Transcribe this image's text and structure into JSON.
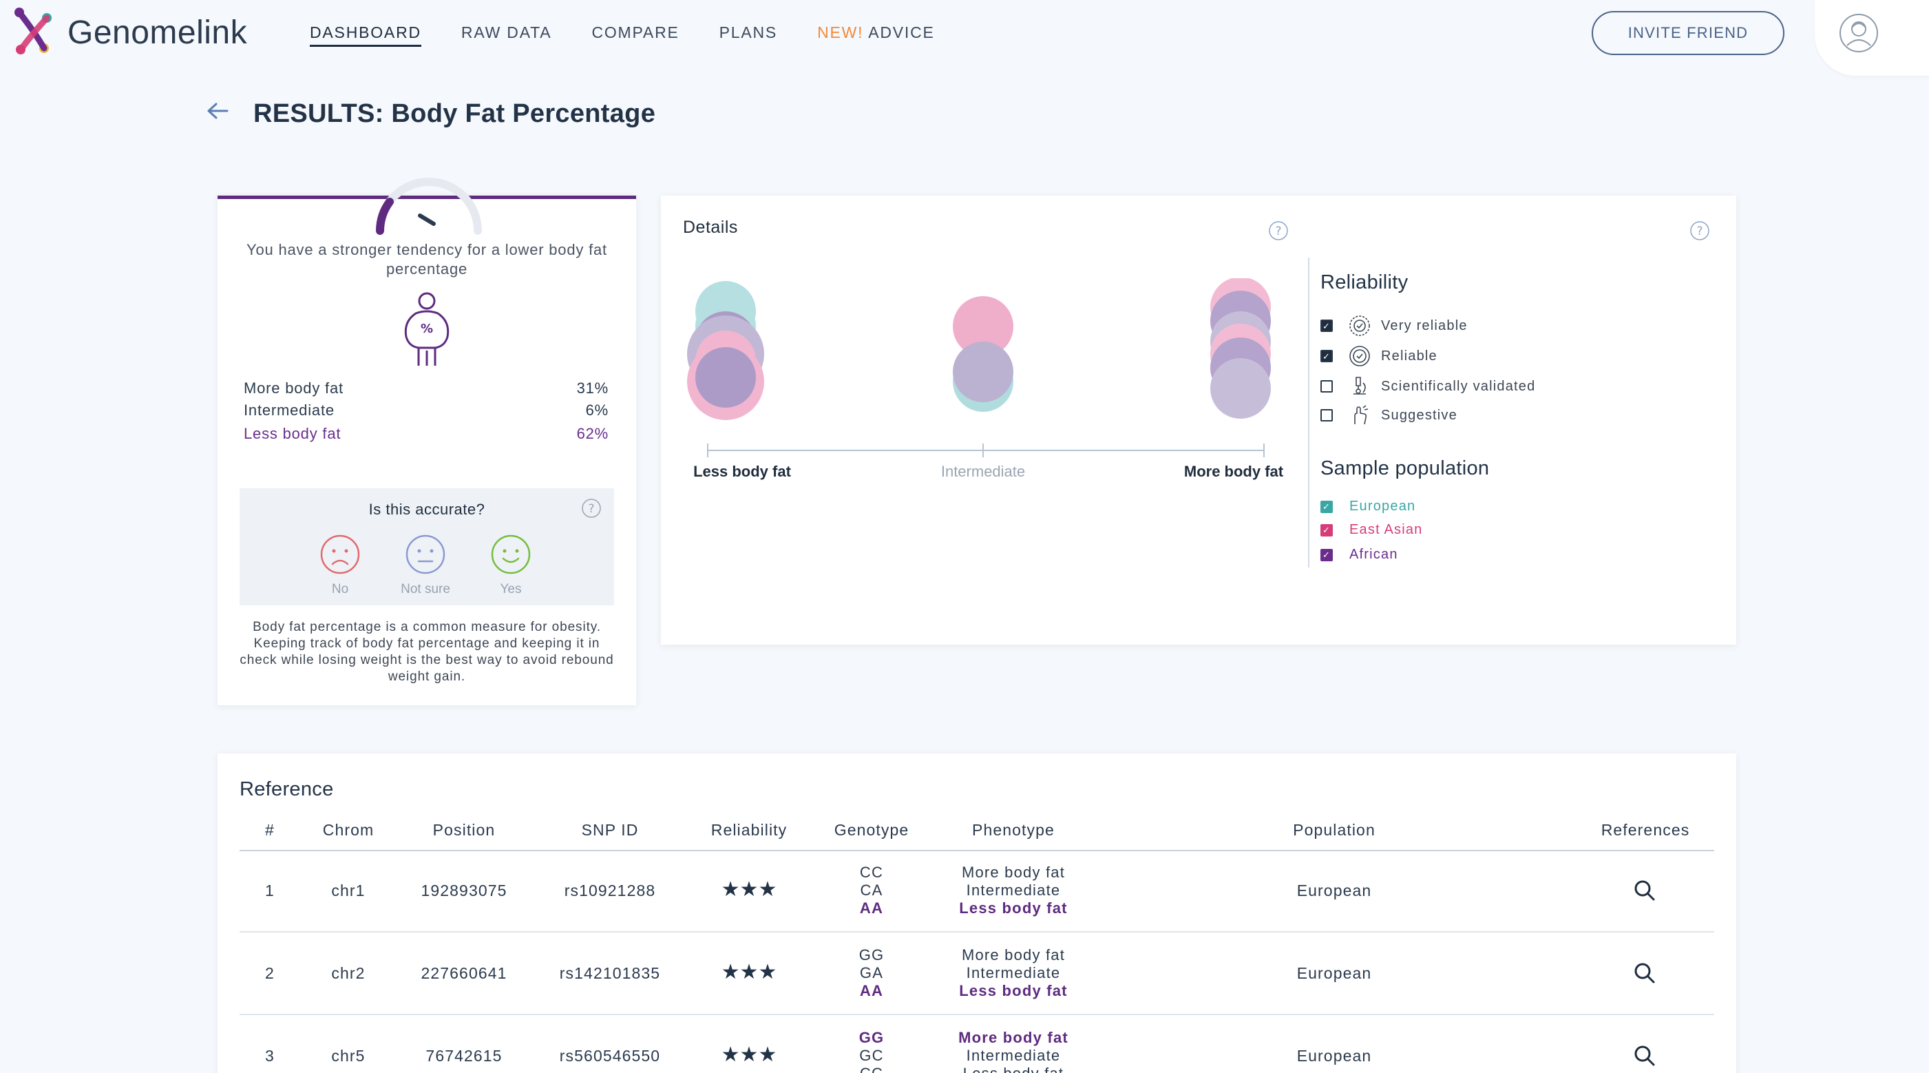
{
  "brand": {
    "name": "Genomelink"
  },
  "nav": {
    "items": [
      {
        "label": "DASHBOARD",
        "active": true
      },
      {
        "label": "RAW DATA"
      },
      {
        "label": "COMPARE"
      },
      {
        "label": "PLANS"
      }
    ],
    "advice_new": "NEW!",
    "advice_label": "ADVICE",
    "invite_label": "INVITE FRIEND"
  },
  "page": {
    "title": "RESULTS: Body Fat Percentage"
  },
  "summary": {
    "tendency": "You have a stronger tendency for a lower body fat percentage",
    "icon_symbol": "%",
    "results": [
      {
        "label": "More body fat",
        "value": "31%"
      },
      {
        "label": "Intermediate",
        "value": "6%"
      },
      {
        "label": "Less body fat",
        "value": "62%",
        "highlight": true
      }
    ],
    "accuracy": {
      "question": "Is this accurate?",
      "options": [
        "No",
        "Not sure",
        "Yes"
      ]
    },
    "description": "Body fat percentage is a common measure for obesity. Keeping track of body fat percentage and keeping it in check while losing weight is the best way to avoid rebound weight gain."
  },
  "details": {
    "title": "Details",
    "axis_labels": [
      "Less body fat",
      "Intermediate",
      "More body fat"
    ],
    "reliability": {
      "heading": "Reliability",
      "items": [
        {
          "label": "Very reliable",
          "checked": true,
          "icon": "badge-icon"
        },
        {
          "label": "Reliable",
          "checked": true,
          "icon": "seal-icon"
        },
        {
          "label": "Scientifically validated",
          "checked": false,
          "icon": "microscope-icon"
        },
        {
          "label": "Suggestive",
          "checked": false,
          "icon": "hand-icon"
        }
      ]
    },
    "population": {
      "heading": "Sample population",
      "items": [
        {
          "label": "European",
          "color": "#3aa6a6",
          "checked": true
        },
        {
          "label": "East Asian",
          "color": "#d63d78",
          "checked": true
        },
        {
          "label": "African",
          "color": "#6a2d8c",
          "checked": true
        }
      ]
    },
    "colors": {
      "european": "#7cc5c9",
      "east_asian": "#e67aa8",
      "african": "#6b4a9a"
    }
  },
  "reference": {
    "title": "Reference",
    "columns": [
      "#",
      "Chrom",
      "Position",
      "SNP ID",
      "Reliability",
      "Genotype",
      "Phenotype",
      "Population",
      "References"
    ],
    "rows": [
      {
        "num": "1",
        "chrom": "chr1",
        "position": "192893075",
        "snp": "rs10921288",
        "stars": "★★★",
        "genotypes": [
          "CC",
          "CA",
          "AA"
        ],
        "phenotypes": [
          "More body fat",
          "Intermediate",
          "Less body fat"
        ],
        "bold_index": 2,
        "population": "European"
      },
      {
        "num": "2",
        "chrom": "chr2",
        "position": "227660641",
        "snp": "rs142101835",
        "stars": "★★★",
        "genotypes": [
          "GG",
          "GA",
          "AA"
        ],
        "phenotypes": [
          "More body fat",
          "Intermediate",
          "Less body fat"
        ],
        "bold_index": 2,
        "population": "European"
      },
      {
        "num": "3",
        "chrom": "chr5",
        "position": "76742615",
        "snp": "rs560546550",
        "stars": "★★★",
        "genotypes": [
          "GG",
          "GC",
          "CC"
        ],
        "phenotypes": [
          "More body fat",
          "Intermediate",
          "Less body fat"
        ],
        "bold_index": 0,
        "population": "European"
      }
    ]
  }
}
